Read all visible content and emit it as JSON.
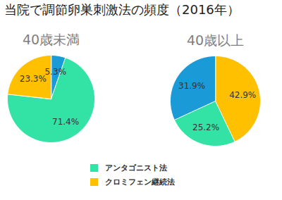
{
  "title": "当院で調節卵巣刺激法の頻度（2016年）",
  "chart_data": [
    {
      "type": "pie",
      "title": "40歳未満",
      "categories": [
        null,
        "アンタゴニスト法",
        "クロミフェン継続法"
      ],
      "values": [
        5.3,
        71.4,
        23.3
      ],
      "value_labels": [
        "5.3%",
        "71.4%",
        "23.3%"
      ],
      "colors": [
        "#1a9bd7",
        "#33e3a6",
        "#ffc000"
      ],
      "data_labels": true,
      "legend": "bottom"
    },
    {
      "type": "pie",
      "title": "40歳以上",
      "categories": [
        "クロミフェン継続法",
        "アンタゴニスト法",
        null
      ],
      "values": [
        42.9,
        25.2,
        31.9
      ],
      "value_labels": [
        "42.9%",
        "25.2%",
        "31.9%"
      ],
      "colors": [
        "#ffc000",
        "#33e3a6",
        "#1a9bd7"
      ],
      "data_labels": true,
      "legend": "bottom"
    }
  ]
}
